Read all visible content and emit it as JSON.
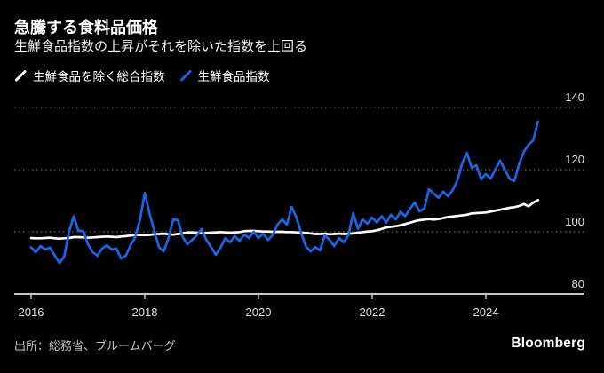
{
  "title": "急騰する食料品価格",
  "subtitle": "生鮮食品指数の上昇がそれを除いた指数を上回る",
  "legend": [
    {
      "label": "生鮮食品を除く総合指数",
      "color": "#ffffff"
    },
    {
      "label": "生鮮食品指数",
      "color": "#1b65e6"
    }
  ],
  "source": "出所：総務省、ブルームバーグ",
  "brand": "Bloomberg",
  "colors": {
    "background": "#000000",
    "accent_blue": "#1b65e6",
    "gridline": "#5f5f5f",
    "axis": "#c8c8c8",
    "tick_label": "#e2e2e2"
  },
  "chart_data": {
    "type": "line",
    "x_unit": "month",
    "x_start_year": 2016,
    "x_end": "2024-12",
    "xticks": [
      2016,
      2018,
      2020,
      2022,
      2024
    ],
    "yticks": [
      80,
      100,
      120,
      140
    ],
    "ylim": [
      80,
      145
    ],
    "grid": "horizontal dotted, labels on right, solid baseline at 80",
    "legend_position": "top-left",
    "series": [
      {
        "name": "生鮮食品を除く総合指数",
        "color": "#ffffff",
        "values": [
          98.0,
          97.9,
          97.9,
          98.0,
          98.1,
          97.9,
          97.8,
          97.9,
          98.0,
          98.3,
          98.3,
          98.2,
          98.1,
          98.2,
          98.3,
          98.4,
          98.5,
          98.4,
          98.3,
          98.5,
          98.6,
          98.8,
          98.9,
          99.0,
          98.9,
          99.0,
          99.2,
          99.3,
          99.4,
          99.2,
          99.1,
          99.3,
          99.5,
          99.8,
          99.8,
          99.7,
          99.5,
          99.6,
          99.7,
          99.8,
          99.9,
          99.8,
          99.7,
          99.8,
          99.9,
          100.2,
          100.3,
          100.3,
          100.2,
          100.1,
          100.1,
          100.0,
          100.0,
          100.0,
          99.9,
          99.9,
          99.8,
          99.7,
          99.6,
          99.5,
          99.3,
          99.3,
          99.4,
          99.2,
          99.3,
          99.4,
          99.3,
          99.4,
          99.5,
          99.7,
          99.9,
          100.1,
          100.2,
          100.5,
          100.9,
          101.4,
          101.6,
          101.8,
          102.1,
          102.5,
          102.9,
          103.4,
          103.7,
          103.9,
          104.1,
          103.9,
          104.1,
          104.4,
          104.7,
          104.9,
          105.1,
          105.3,
          105.5,
          105.9,
          106.0,
          106.1,
          106.2,
          106.5,
          106.8,
          107.1,
          107.4,
          107.7,
          107.9,
          108.3,
          108.9,
          108.2,
          109.4,
          110.2
        ]
      },
      {
        "name": "生鮮食品指数",
        "color": "#1b65e6",
        "values": [
          95.0,
          93.4,
          95.4,
          94.3,
          94.9,
          92.3,
          90.0,
          92.0,
          100.0,
          105.0,
          100.3,
          100.3,
          96.0,
          93.5,
          92.3,
          94.6,
          95.7,
          94.3,
          94.6,
          91.4,
          92.3,
          95.7,
          98.3,
          104.0,
          112.5,
          106.0,
          100.3,
          95.1,
          93.7,
          98.0,
          104.0,
          103.7,
          98.3,
          96.0,
          97.4,
          98.9,
          100.9,
          97.4,
          95.1,
          92.6,
          94.9,
          98.0,
          96.6,
          98.6,
          97.1,
          99.1,
          98.0,
          100.0,
          98.0,
          99.4,
          97.4,
          98.9,
          102.3,
          104.0,
          102.3,
          108.0,
          104.6,
          99.7,
          95.4,
          93.7,
          95.1,
          94.0,
          98.9,
          97.4,
          95.4,
          98.0,
          96.6,
          98.9,
          106.0,
          100.9,
          104.0,
          102.6,
          104.6,
          103.0,
          105.0,
          103.0,
          105.5,
          104.0,
          106.5,
          105.0,
          107.5,
          109.4,
          106.6,
          107.5,
          113.7,
          112.3,
          110.9,
          112.9,
          111.4,
          113.4,
          116.6,
          122.0,
          125.4,
          120.6,
          121.4,
          116.9,
          118.6,
          117.1,
          120.0,
          122.9,
          120.0,
          117.1,
          116.3,
          121.7,
          125.7,
          128.0,
          129.4,
          135.5
        ]
      }
    ]
  }
}
